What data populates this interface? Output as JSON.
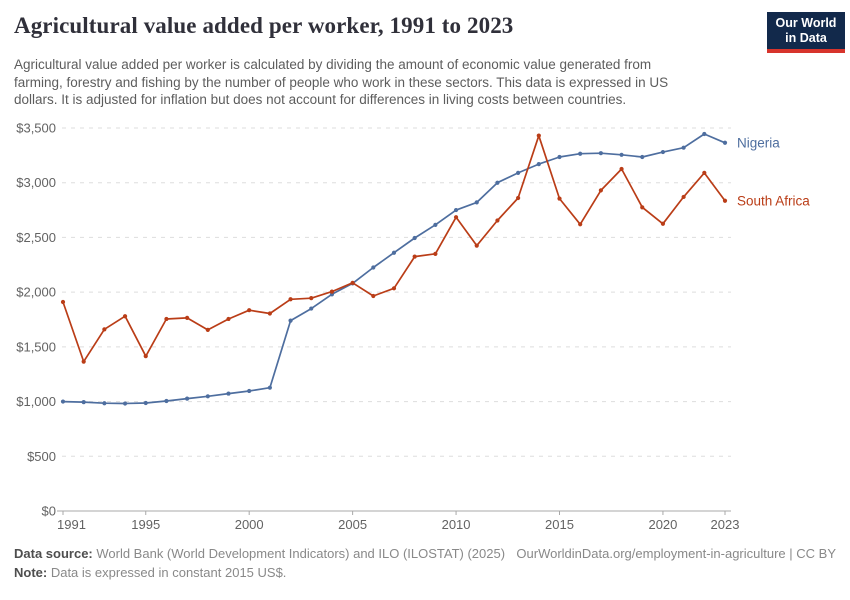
{
  "header": {
    "title": "Agricultural value added per worker, 1991 to 2023",
    "subtitle_lines": [
      "Agricultural value added per worker is calculated by dividing the amount of economic value generated from",
      "farming, forestry and fishing by the number of people who work in these sectors. This data is expressed in US",
      "dollars. It is adjusted for inflation but does not account for differences in living costs between countries."
    ],
    "logo": {
      "line1": "Our World",
      "line2": "in Data"
    }
  },
  "chart_data": {
    "type": "line",
    "title": "Agricultural value added per worker, 1991 to 2023",
    "ylabel": "",
    "xlabel": "",
    "ylim": [
      0,
      3500
    ],
    "ytick_step": 500,
    "ytick_prefix": "$",
    "grid": "horizontal-dashed",
    "legend_position": "end-of-line",
    "xticks": [
      1991,
      1995,
      2000,
      2005,
      2010,
      2015,
      2020,
      2023
    ],
    "years": [
      1991,
      1992,
      1993,
      1994,
      1995,
      1996,
      1997,
      1998,
      1999,
      2000,
      2001,
      2002,
      2003,
      2004,
      2005,
      2006,
      2007,
      2008,
      2009,
      2010,
      2011,
      2012,
      2013,
      2014,
      2015,
      2016,
      2017,
      2018,
      2019,
      2020,
      2021,
      2022,
      2023
    ],
    "series": [
      {
        "name": "Nigeria",
        "color": "#4e6e9f",
        "values": [
          1000,
          995,
          985,
          982,
          987,
          1005,
          1027,
          1048,
          1073,
          1097,
          1127,
          1740,
          1850,
          1980,
          2080,
          2225,
          2360,
          2495,
          2615,
          2750,
          2820,
          3000,
          3090,
          3170,
          3235,
          3265,
          3270,
          3255,
          3235,
          3280,
          3320,
          3445,
          3365
        ]
      },
      {
        "name": "South Africa",
        "color": "#ba3d17",
        "values": [
          1910,
          1365,
          1660,
          1780,
          1415,
          1755,
          1765,
          1655,
          1755,
          1835,
          1805,
          1935,
          1945,
          2005,
          2085,
          1965,
          2035,
          2325,
          2350,
          2685,
          2425,
          2655,
          2860,
          3430,
          2855,
          2620,
          2930,
          3125,
          2775,
          2625,
          2870,
          3090,
          2835
        ]
      }
    ]
  },
  "footer": {
    "source_label": "Data source:",
    "source_text": " World Bank (World Development Indicators) and ILO (ILOSTAT) (2025)",
    "url_text": "OurWorldinData.org/employment-in-agriculture | CC BY",
    "note_label": "Note:",
    "note_text": " Data is expressed in constant 2015 US$."
  },
  "colors": {
    "title": "#30303a",
    "subtitle": "#5d5d5d",
    "axis_text": "#636363",
    "axis_line": "#a8a8a8",
    "gridline": "#dddddd",
    "logo_bg": "#12294b",
    "logo_stripe": "#d7342c"
  }
}
